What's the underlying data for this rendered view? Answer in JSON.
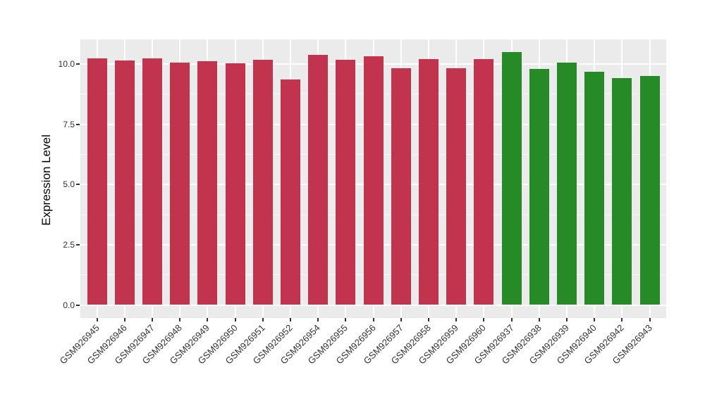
{
  "figure": {
    "background": "#FFFFFF",
    "panel_background": "#EBEBEB",
    "gridline_color": "#FFFFFF",
    "tick_color": "#333333",
    "axis_text_color": "#333333"
  },
  "chart_data": {
    "type": "bar",
    "title": "",
    "xlabel": "",
    "ylabel": "Expression Level",
    "ylim": [
      0,
      11.0
    ],
    "grid": true,
    "legend": "none",
    "ytick_labels": [
      "0.0",
      "2.5",
      "5.0",
      "7.5",
      "10.0"
    ],
    "ytick_values": [
      0,
      2.5,
      5,
      7.5,
      10
    ],
    "minor_ytick_values": [
      1.25,
      3.75,
      6.25,
      8.75
    ],
    "bar_groups": [
      {
        "name": "red-group",
        "color": "#C2334D"
      },
      {
        "name": "green-group",
        "color": "#268B26"
      }
    ],
    "bars": [
      {
        "label": "GSM926945",
        "value": 10.25,
        "group": 0
      },
      {
        "label": "GSM926946",
        "value": 10.15,
        "group": 0
      },
      {
        "label": "GSM926947",
        "value": 10.23,
        "group": 0
      },
      {
        "label": "GSM926948",
        "value": 10.07,
        "group": 0
      },
      {
        "label": "GSM926949",
        "value": 10.12,
        "group": 0
      },
      {
        "label": "GSM926950",
        "value": 10.04,
        "group": 0
      },
      {
        "label": "GSM926951",
        "value": 10.17,
        "group": 0
      },
      {
        "label": "GSM926952",
        "value": 9.35,
        "group": 0
      },
      {
        "label": "GSM926954",
        "value": 10.38,
        "group": 0
      },
      {
        "label": "GSM926955",
        "value": 10.18,
        "group": 0
      },
      {
        "label": "GSM926956",
        "value": 10.32,
        "group": 0
      },
      {
        "label": "GSM926957",
        "value": 9.83,
        "group": 0
      },
      {
        "label": "GSM926958",
        "value": 10.2,
        "group": 0
      },
      {
        "label": "GSM926959",
        "value": 9.84,
        "group": 0
      },
      {
        "label": "GSM926960",
        "value": 10.21,
        "group": 0
      },
      {
        "label": "GSM926937",
        "value": 10.5,
        "group": 1
      },
      {
        "label": "GSM926938",
        "value": 9.8,
        "group": 1
      },
      {
        "label": "GSM926939",
        "value": 10.07,
        "group": 1
      },
      {
        "label": "GSM926940",
        "value": 9.69,
        "group": 1
      },
      {
        "label": "GSM926942",
        "value": 9.43,
        "group": 1
      },
      {
        "label": "GSM926943",
        "value": 9.5,
        "group": 1
      }
    ]
  }
}
